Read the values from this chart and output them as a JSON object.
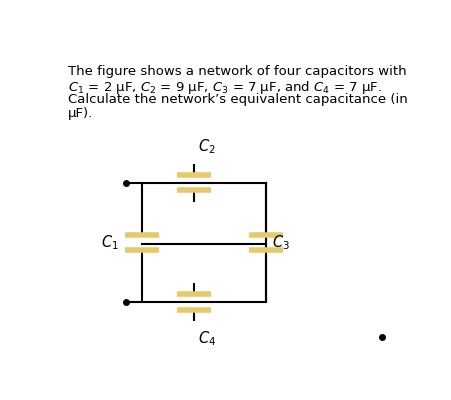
{
  "title_line1": "The figure shows a network of four capacitors with",
  "title_line2": "$C_1$ = 2 μF, $C_2$ = 9 μF, $C_3$ = 7 μF, and $C_4$ = 7 μF.",
  "title_line3": "Calculate the network’s equivalent capacitance (in",
  "title_line4": "μF).",
  "bg_color": "#ffffff",
  "wire_color": "#000000",
  "cap_color": "#e8c96a",
  "text_color": "#000000",
  "font_size_text": 9.5,
  "font_size_label": 10.5
}
